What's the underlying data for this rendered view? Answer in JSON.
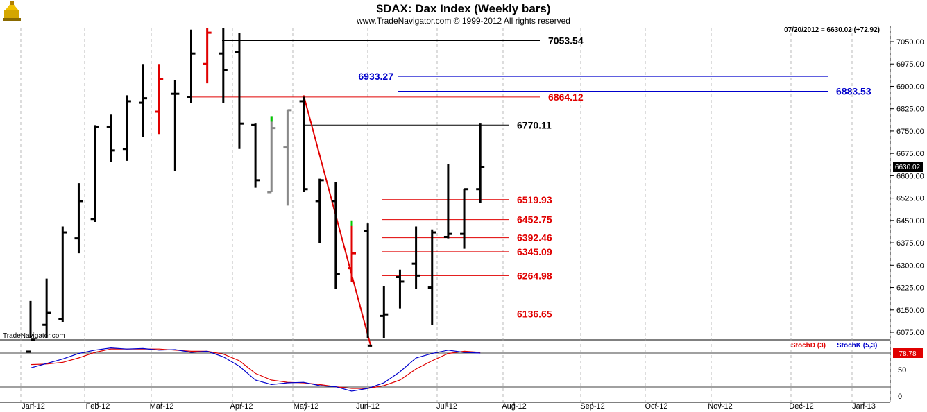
{
  "header": {
    "title": "$DAX:  Dax Index  (Weekly bars)",
    "copyright": "www.TradeNavigator.com © 1999-2012 All rights reserved",
    "last_info": "07/20/2012 = 6630.02 (+72.92)",
    "watermark": "TradeNavigator.com"
  },
  "colors": {
    "black": "#000000",
    "red": "#e00000",
    "blue": "#0000cc",
    "green": "#00cc00",
    "gray": "#888888"
  },
  "chart_data": {
    "type": "ohlc",
    "price_ticks": [
      "6075.00",
      "6150.00",
      "6225.00",
      "6300.00",
      "6375.00",
      "6450.00",
      "6525.00",
      "6600.00",
      "6675.00",
      "6750.00",
      "6825.00",
      "6900.00",
      "6975.00",
      "7050.00"
    ],
    "x_labels": [
      "Jan-12",
      "Feb-12",
      "Mar-12",
      "Apr-12",
      "May-12",
      "Jun-12",
      "Jul-12",
      "Aug-12",
      "Sep-12",
      "Oct-12",
      "Nov-12",
      "Dec-12",
      "Jan-13"
    ],
    "last_price": "6630.02",
    "bars": [
      {
        "o": 6010,
        "h": 6180,
        "l": 5950,
        "c": 6050,
        "color": "black"
      },
      {
        "o": 6100,
        "h": 6255,
        "l": 6040,
        "c": 6140,
        "color": "black"
      },
      {
        "o": 6120,
        "h": 6430,
        "l": 6110,
        "c": 6410,
        "color": "black"
      },
      {
        "o": 6390,
        "h": 6575,
        "l": 6340,
        "c": 6515,
        "color": "black"
      },
      {
        "o": 6455,
        "h": 6770,
        "l": 6445,
        "c": 6765,
        "color": "black"
      },
      {
        "o": 6765,
        "h": 6805,
        "l": 6645,
        "c": 6685,
        "color": "black"
      },
      {
        "o": 6690,
        "h": 6870,
        "l": 6650,
        "c": 6850,
        "color": "black"
      },
      {
        "o": 6845,
        "h": 6975,
        "l": 6730,
        "c": 6860,
        "color": "black"
      },
      {
        "o": 6815,
        "h": 6975,
        "l": 6740,
        "c": 6925,
        "color": "red"
      },
      {
        "o": 6875,
        "h": 6920,
        "l": 6615,
        "c": 6875,
        "color": "black"
      },
      {
        "o": 6865,
        "h": 7090,
        "l": 6845,
        "c": 7010,
        "color": "black"
      },
      {
        "o": 6975,
        "h": 7095,
        "l": 6910,
        "c": 7080,
        "color": "red"
      },
      {
        "o": 7010,
        "h": 7095,
        "l": 6845,
        "c": 6955,
        "color": "black"
      },
      {
        "o": 7015,
        "h": 7080,
        "l": 6690,
        "c": 6775,
        "color": "black"
      },
      {
        "o": 6770,
        "h": 6775,
        "l": 6560,
        "c": 6585,
        "color": "black"
      },
      {
        "o": 6545,
        "h": 6800,
        "l": 6545,
        "c": 6760,
        "color": "gray"
      },
      {
        "o": 6695,
        "h": 6820,
        "l": 6500,
        "c": 6820,
        "color": "gray"
      },
      {
        "o": 6850,
        "h": 6865,
        "l": 6545,
        "c": 6555,
        "color": "black"
      },
      {
        "o": 6515,
        "h": 6590,
        "l": 6375,
        "c": 6585,
        "color": "black"
      },
      {
        "o": 6515,
        "h": 6580,
        "l": 6220,
        "c": 6270,
        "color": "black"
      },
      {
        "o": 6290,
        "h": 6450,
        "l": 6245,
        "c": 6340,
        "color": "red"
      },
      {
        "o": 6415,
        "h": 6440,
        "l": 6030,
        "c": 6030,
        "color": "black"
      },
      {
        "o": 6130,
        "h": 6230,
        "l": 6040,
        "c": 6135,
        "color": "black"
      },
      {
        "o": 6260,
        "h": 6285,
        "l": 6155,
        "c": 6245,
        "color": "black"
      },
      {
        "o": 6305,
        "h": 6430,
        "l": 6220,
        "c": 6265,
        "color": "black"
      },
      {
        "o": 6225,
        "h": 6420,
        "l": 6100,
        "c": 6410,
        "color": "black"
      },
      {
        "o": 6395,
        "h": 6640,
        "l": 6390,
        "c": 6405,
        "color": "black"
      },
      {
        "o": 6405,
        "h": 6555,
        "l": 6355,
        "c": 6555,
        "color": "black"
      },
      {
        "o": 6555,
        "h": 6775,
        "l": 6510,
        "c": 6630,
        "color": "black"
      }
    ],
    "levels": [
      {
        "label": "7053.54",
        "value": 7053.54,
        "color": "black"
      },
      {
        "label": "6933.27",
        "value": 6933.27,
        "color": "blue"
      },
      {
        "label": "6883.53",
        "value": 6883.53,
        "color": "blue"
      },
      {
        "label": "6864.12",
        "value": 6864.12,
        "color": "red"
      },
      {
        "label": "6770.11",
        "value": 6770.11,
        "color": "black"
      },
      {
        "label": "6519.93",
        "value": 6519.93,
        "color": "red"
      },
      {
        "label": "6452.75",
        "value": 6452.75,
        "color": "red"
      },
      {
        "label": "6392.46",
        "value": 6392.46,
        "color": "red"
      },
      {
        "label": "6345.09",
        "value": 6345.09,
        "color": "red"
      },
      {
        "label": "6264.98",
        "value": 6264.98,
        "color": "red"
      },
      {
        "label": "6136.65",
        "value": 6136.65,
        "color": "red"
      }
    ],
    "trendline": {
      "from": {
        "week": 17,
        "value": 6870
      },
      "to": {
        "week": 21.2,
        "value": 6025
      }
    },
    "stochastic": {
      "legend": [
        "StochD (3)",
        "StochK (5,3)"
      ],
      "ticks": [
        "50",
        "0"
      ],
      "last_value": "78.78",
      "stochK": [
        52,
        60,
        68,
        78,
        84,
        88,
        86,
        87,
        84,
        85,
        80,
        82,
        72,
        55,
        30,
        22,
        25,
        26,
        20,
        18,
        10,
        15,
        25,
        45,
        70,
        78,
        84,
        80,
        78.78
      ],
      "stochD": [
        58,
        59,
        62,
        70,
        80,
        86,
        86,
        86,
        86,
        84,
        82,
        82,
        77,
        65,
        42,
        30,
        26,
        25,
        22,
        18,
        15,
        15,
        20,
        30,
        50,
        65,
        78,
        82,
        80
      ]
    }
  }
}
